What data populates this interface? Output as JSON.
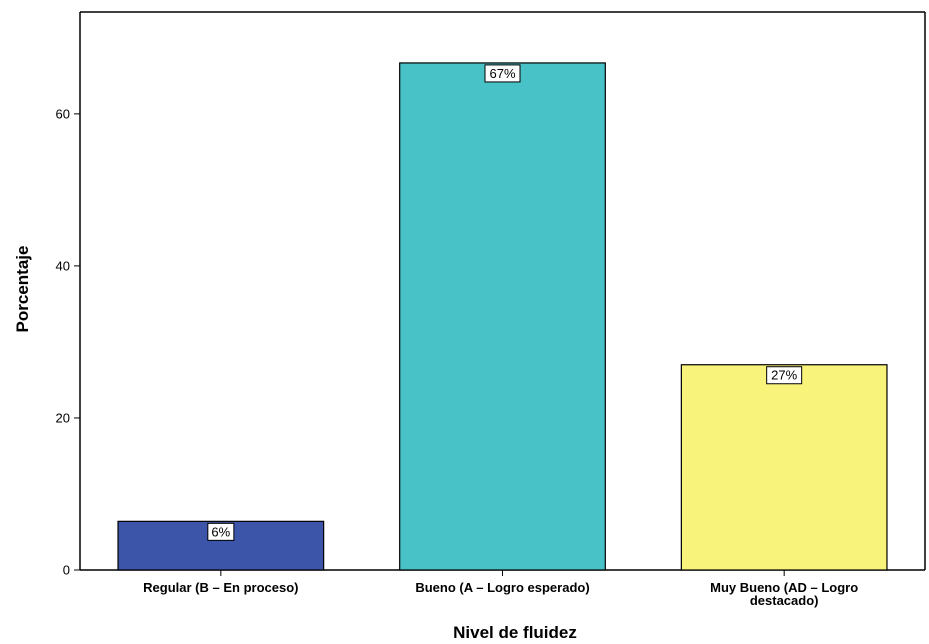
{
  "chart_data": {
    "type": "bar",
    "categories": [
      [
        "Regular (B – En proceso)"
      ],
      [
        "Bueno (A – Logro esperado)"
      ],
      [
        "Muy Bueno (AD – Logro",
        "destacado)"
      ]
    ],
    "values": [
      6.4,
      66.7,
      27.0
    ],
    "data_labels": [
      "6%",
      "67%",
      "27%"
    ],
    "colors": [
      "#3D55A8",
      "#48C2C6",
      "#F8F37A"
    ],
    "xlabel": "Nivel de fluidez",
    "ylabel": "Porcentaje",
    "yticks": [
      0,
      20,
      40,
      60
    ],
    "ylim": [
      0,
      73.4
    ],
    "grid": false,
    "legend": "none"
  }
}
